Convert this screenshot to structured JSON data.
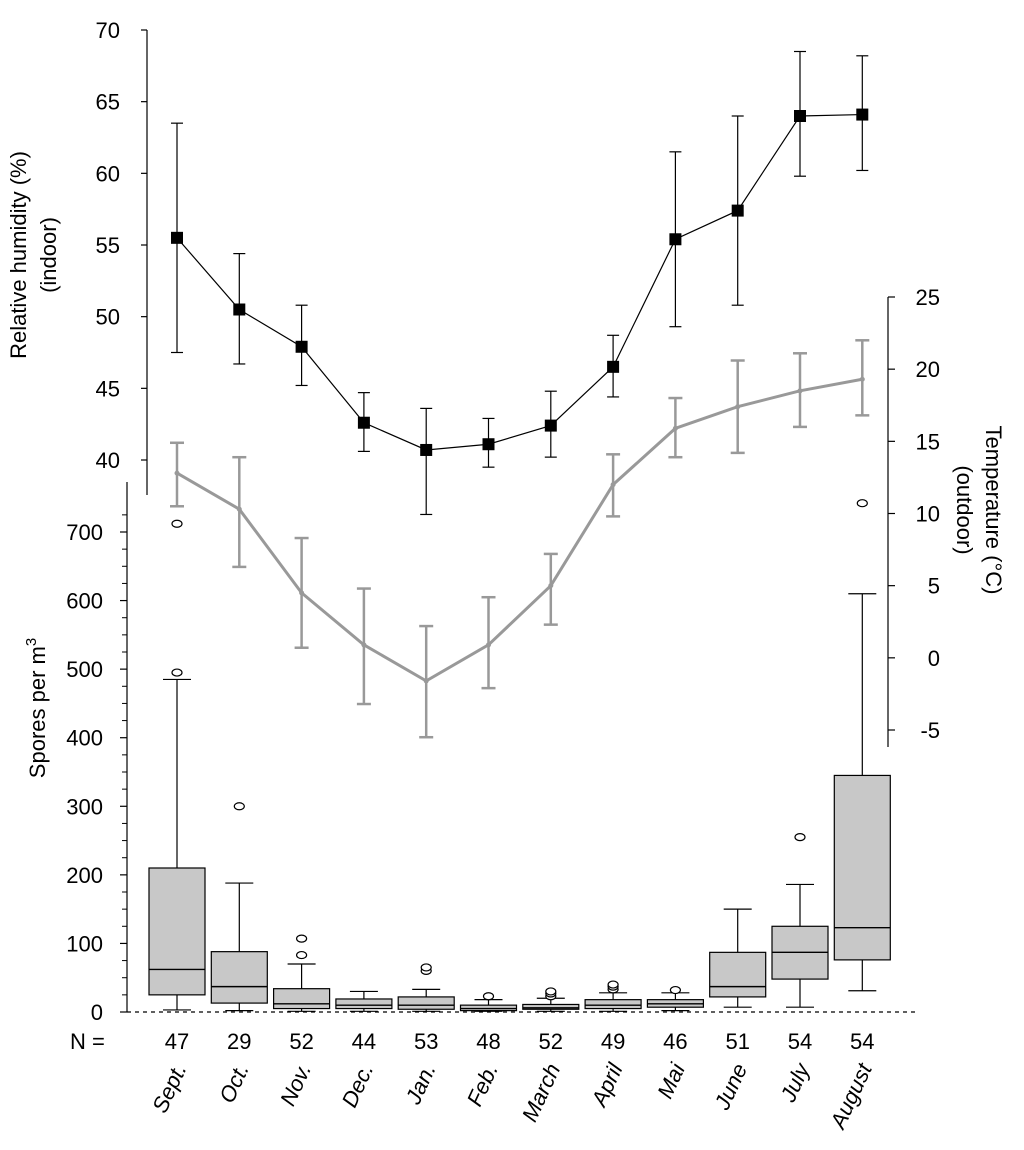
{
  "chart_data": [
    {
      "type": "line",
      "name": "humidity",
      "series": [
        {
          "name": "Relative humidity (%) (indoor)",
          "values": [
            55.5,
            50.5,
            47.9,
            42.6,
            40.7,
            41.1,
            42.4,
            46.5,
            55.4,
            57.4,
            64.0,
            64.1
          ]
        }
      ],
      "error_low": [
        47.5,
        46.7,
        45.2,
        40.6,
        36.2,
        39.5,
        40.2,
        44.4,
        49.3,
        50.8,
        59.8,
        60.2
      ],
      "error_high": [
        63.5,
        54.4,
        50.8,
        44.7,
        43.6,
        42.9,
        44.8,
        48.7,
        61.5,
        64.0,
        68.5,
        68.2
      ],
      "ylabel_line1": "Relative humidity (%)",
      "ylabel_line2": "(indoor)",
      "ylim": [
        40,
        70
      ],
      "ticks": [
        40,
        45,
        50,
        55,
        60,
        65,
        70
      ],
      "color": "#000000"
    },
    {
      "type": "line",
      "name": "temperature",
      "series": [
        {
          "name": "Temperature (°C) (outdoor)",
          "values": [
            12.8,
            10.3,
            4.5,
            0.9,
            -1.6,
            0.9,
            5.0,
            12.0,
            15.9,
            17.4,
            18.5,
            19.3
          ]
        }
      ],
      "error_low": [
        10.5,
        6.3,
        0.7,
        -3.2,
        -5.5,
        -2.1,
        2.3,
        9.8,
        13.9,
        14.2,
        16.0,
        16.8
      ],
      "error_high": [
        14.9,
        13.9,
        8.3,
        4.8,
        2.2,
        4.2,
        7.2,
        14.1,
        18.0,
        20.6,
        21.1,
        22.0
      ],
      "ylabel_line1": "Temperature (°C)",
      "ylabel_line2": "(outdoor)",
      "ylim": [
        -5,
        25
      ],
      "ticks": [
        -5,
        0,
        5,
        10,
        15,
        20,
        25
      ],
      "color": "#999999"
    },
    {
      "type": "box",
      "name": "spores",
      "ylabel": "Spores per m",
      "ylabel_sup": "3",
      "ylim": [
        0,
        750
      ],
      "ticks": [
        0,
        100,
        200,
        300,
        400,
        500,
        600,
        700
      ],
      "boxes": [
        {
          "min": 3,
          "q1": 25,
          "median": 62,
          "q3": 210,
          "max": 485,
          "outliers": [
            495,
            712
          ]
        },
        {
          "min": 2,
          "q1": 13,
          "median": 37,
          "q3": 88,
          "max": 188,
          "outliers": [
            300
          ]
        },
        {
          "min": 1,
          "q1": 5,
          "median": 12,
          "q3": 34,
          "max": 70,
          "outliers": [
            83,
            107
          ]
        },
        {
          "min": 1,
          "q1": 5,
          "median": 10,
          "q3": 19,
          "max": 30,
          "outliers": []
        },
        {
          "min": 1,
          "q1": 4,
          "median": 10,
          "q3": 22,
          "max": 33,
          "outliers": [
            60,
            65
          ]
        },
        {
          "min": 1,
          "q1": 2,
          "median": 5,
          "q3": 10,
          "max": 18,
          "outliers": [
            23
          ]
        },
        {
          "min": 1,
          "q1": 4,
          "median": 6,
          "q3": 11,
          "max": 20,
          "outliers": [
            23,
            27,
            30
          ]
        },
        {
          "min": 1,
          "q1": 5,
          "median": 10,
          "q3": 18,
          "max": 28,
          "outliers": [
            33,
            37,
            40
          ]
        },
        {
          "min": 2,
          "q1": 7,
          "median": 12,
          "q3": 18,
          "max": 28,
          "outliers": [
            32
          ]
        },
        {
          "min": 7,
          "q1": 22,
          "median": 37,
          "q3": 87,
          "max": 150,
          "outliers": []
        },
        {
          "min": 7,
          "q1": 48,
          "median": 87,
          "q3": 125,
          "max": 186,
          "outliers": [
            255
          ]
        },
        {
          "min": 31,
          "q1": 76,
          "median": 123,
          "q3": 345,
          "max": 610,
          "outliers": [
            742
          ]
        }
      ],
      "color": "#c8c8c8"
    }
  ],
  "categories": [
    "Sept.",
    "Oct.",
    "Nov.",
    "Dec.",
    "Jan.",
    "Feb.",
    "March",
    "April",
    "Mai",
    "June",
    "July",
    "August"
  ],
  "n_label": "N =",
  "n_values": [
    "47",
    "29",
    "52",
    "44",
    "53",
    "48",
    "52",
    "49",
    "46",
    "51",
    "54",
    "54"
  ]
}
